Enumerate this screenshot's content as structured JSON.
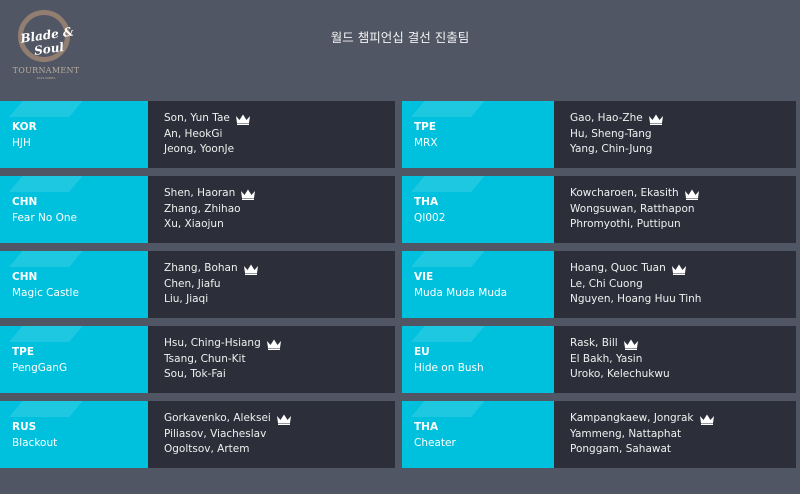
{
  "header": {
    "logo_text": "Blade & Soul",
    "logo_sub": "TOURNAMENT",
    "logo_small": "2019 KOREA",
    "title": "월드 챔피언십 결선 진출팀"
  },
  "teams": [
    {
      "country": "KOR",
      "name": "HJH",
      "players": [
        "Son, Yun Tae",
        "An, HeokGi",
        "Jeong, YoonJe"
      ]
    },
    {
      "country": "TPE",
      "name": "MRX",
      "players": [
        "Gao, Hao-Zhe",
        "Hu, Sheng-Tang",
        "Yang, Chin-Jung"
      ]
    },
    {
      "country": "CHN",
      "name": "Fear No One",
      "players": [
        "Shen, Haoran",
        "Zhang, Zhihao",
        "Xu, Xiaojun"
      ]
    },
    {
      "country": "THA",
      "name": "QI002",
      "players": [
        "Kowcharoen, Ekasith",
        "Wongsuwan, Ratthapon",
        "Phromyothi, Puttipun"
      ]
    },
    {
      "country": "CHN",
      "name": "Magic Castle",
      "players": [
        "Zhang, Bohan",
        "Chen, Jiafu",
        "Liu, Jiaqi"
      ]
    },
    {
      "country": "VIE",
      "name": "Muda Muda Muda",
      "players": [
        "Hoang, Quoc Tuan",
        "Le, Chi Cuong",
        "Nguyen, Hoang Huu Tinh"
      ]
    },
    {
      "country": "TPE",
      "name": "PengGanG",
      "players": [
        "Hsu, Ching-Hsiang",
        "Tsang, Chun-Kit",
        "Sou, Tok-Fai"
      ]
    },
    {
      "country": "EU",
      "name": "Hide on Bush",
      "players": [
        "Rask, Bill",
        "El Bakh, Yasin",
        "Uroko, Kelechukwu"
      ]
    },
    {
      "country": "RUS",
      "name": "Blackout",
      "players": [
        "Gorkavenko, Aleksei",
        "Piliasov, Viacheslav",
        "Ogoltsov, Artem"
      ]
    },
    {
      "country": "THA",
      "name": "Cheater",
      "players": [
        "Kampangkaew, Jongrak",
        "Yammeng, Nattaphat",
        "Ponggam, Sahawat"
      ]
    }
  ],
  "colors": {
    "background": "#505663",
    "team_panel": "#00c1dd",
    "player_panel": "#2c2f39"
  },
  "captain_icon": "crown-icon"
}
